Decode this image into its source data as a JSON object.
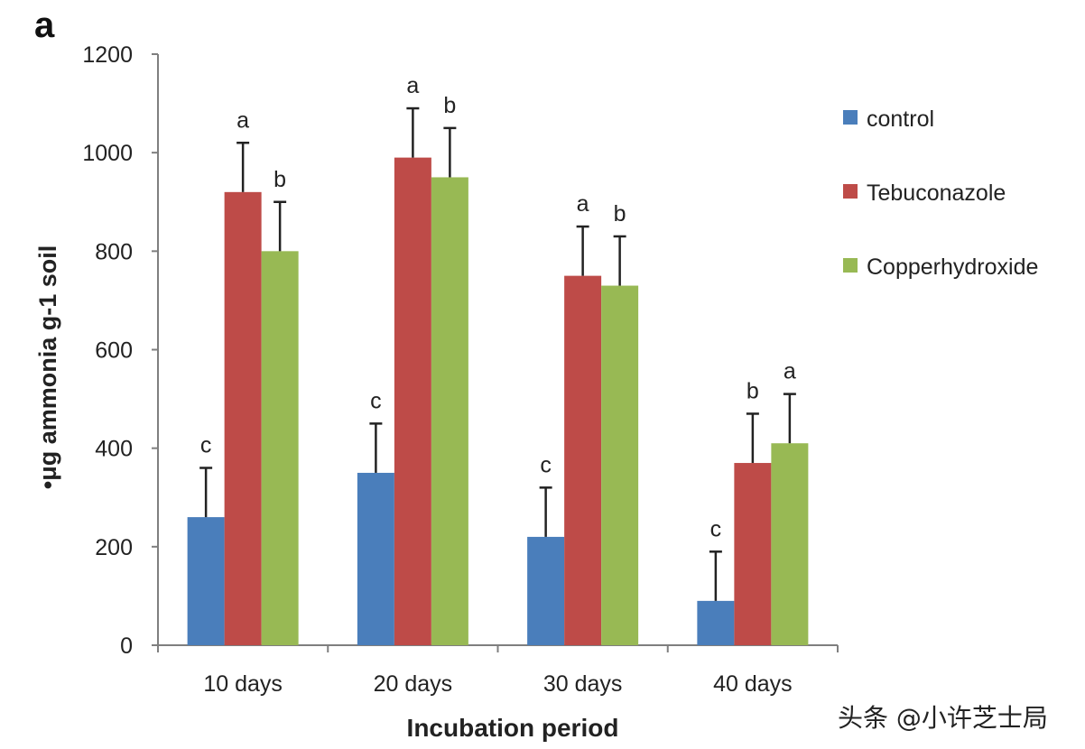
{
  "panel_label": "a",
  "watermark": "头条 @小许芝士局",
  "colors": {
    "axis": "#7f7f7f",
    "errorbar": "#222222",
    "text": "#222222"
  },
  "chart_data": {
    "type": "bar",
    "title": "",
    "xlabel": "Incubation period",
    "ylabel": "•μg ammonia g-1 soil",
    "ylim": [
      0,
      1200
    ],
    "yticks": [
      0,
      200,
      400,
      600,
      800,
      1000,
      1200
    ],
    "grid": false,
    "legend_position": "right",
    "categories": [
      "10 days",
      "20 days",
      "30 days",
      "40 days"
    ],
    "series": [
      {
        "name": "control",
        "color": "#4a7ebb",
        "values": [
          260,
          350,
          220,
          90
        ],
        "errors": [
          100,
          100,
          100,
          100
        ],
        "letters": [
          "c",
          "c",
          "c",
          "c"
        ]
      },
      {
        "name": "Tebuconazole",
        "color": "#be4b48",
        "values": [
          920,
          990,
          750,
          370
        ],
        "errors": [
          100,
          100,
          100,
          100
        ],
        "letters": [
          "a",
          "a",
          "a",
          "b"
        ]
      },
      {
        "name": "Copperhydroxide",
        "color": "#98b954",
        "values": [
          800,
          950,
          730,
          410
        ],
        "errors": [
          100,
          100,
          100,
          100
        ],
        "letters": [
          "b",
          "b",
          "b",
          "a"
        ]
      }
    ]
  }
}
